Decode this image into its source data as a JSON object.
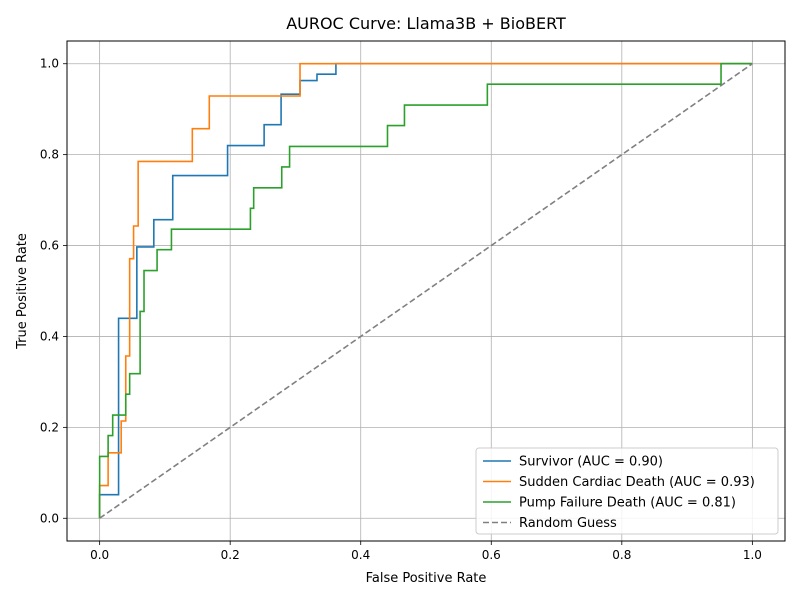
{
  "chart_data": {
    "type": "line",
    "title": "AUROC Curve: Llama3B + BioBERT",
    "xlabel": "False Positive Rate",
    "ylabel": "True Positive Rate",
    "xlim": [
      -0.05,
      1.05
    ],
    "ylim": [
      -0.05,
      1.05
    ],
    "xticks": [
      0.0,
      0.2,
      0.4,
      0.6,
      0.8,
      1.0
    ],
    "yticks": [
      0.0,
      0.2,
      0.4,
      0.6,
      0.8,
      1.0
    ],
    "xtick_labels": [
      "0.0",
      "0.2",
      "0.4",
      "0.6",
      "0.8",
      "1.0"
    ],
    "ytick_labels": [
      "0.0",
      "0.2",
      "0.4",
      "0.6",
      "0.8",
      "1.0"
    ],
    "grid": true,
    "legend_position": "lower-right",
    "series": [
      {
        "name": "Survivor (AUC = 0.90)",
        "color": "#1f77b4",
        "style": "solid",
        "points": [
          [
            0.0,
            0.0
          ],
          [
            0.0,
            0.052
          ],
          [
            0.029,
            0.052
          ],
          [
            0.029,
            0.44
          ],
          [
            0.057,
            0.44
          ],
          [
            0.057,
            0.597
          ],
          [
            0.083,
            0.597
          ],
          [
            0.083,
            0.657
          ],
          [
            0.112,
            0.657
          ],
          [
            0.112,
            0.754
          ],
          [
            0.196,
            0.754
          ],
          [
            0.196,
            0.82
          ],
          [
            0.252,
            0.82
          ],
          [
            0.252,
            0.866
          ],
          [
            0.278,
            0.866
          ],
          [
            0.278,
            0.933
          ],
          [
            0.307,
            0.933
          ],
          [
            0.307,
            0.963
          ],
          [
            0.333,
            0.963
          ],
          [
            0.333,
            0.977
          ],
          [
            0.362,
            0.977
          ],
          [
            0.362,
            1.0
          ],
          [
            1.0,
            1.0
          ]
        ]
      },
      {
        "name": "Sudden Cardiac Death (AUC = 0.93)",
        "color": "#ff7f0e",
        "style": "solid",
        "points": [
          [
            0.0,
            0.0
          ],
          [
            0.0,
            0.072
          ],
          [
            0.013,
            0.072
          ],
          [
            0.013,
            0.144
          ],
          [
            0.033,
            0.144
          ],
          [
            0.033,
            0.214
          ],
          [
            0.04,
            0.214
          ],
          [
            0.04,
            0.357
          ],
          [
            0.046,
            0.357
          ],
          [
            0.046,
            0.571
          ],
          [
            0.052,
            0.571
          ],
          [
            0.052,
            0.643
          ],
          [
            0.059,
            0.643
          ],
          [
            0.059,
            0.785
          ],
          [
            0.142,
            0.785
          ],
          [
            0.142,
            0.857
          ],
          [
            0.168,
            0.857
          ],
          [
            0.168,
            0.929
          ],
          [
            0.307,
            0.929
          ],
          [
            0.307,
            1.0
          ],
          [
            1.0,
            1.0
          ]
        ]
      },
      {
        "name": "Pump Failure Death (AUC = 0.81)",
        "color": "#2ca02c",
        "style": "solid",
        "points": [
          [
            0.0,
            0.0
          ],
          [
            0.0,
            0.136
          ],
          [
            0.013,
            0.136
          ],
          [
            0.013,
            0.182
          ],
          [
            0.02,
            0.182
          ],
          [
            0.02,
            0.227
          ],
          [
            0.04,
            0.227
          ],
          [
            0.04,
            0.273
          ],
          [
            0.046,
            0.273
          ],
          [
            0.046,
            0.318
          ],
          [
            0.062,
            0.318
          ],
          [
            0.062,
            0.455
          ],
          [
            0.068,
            0.455
          ],
          [
            0.068,
            0.545
          ],
          [
            0.088,
            0.545
          ],
          [
            0.088,
            0.591
          ],
          [
            0.11,
            0.591
          ],
          [
            0.11,
            0.636
          ],
          [
            0.231,
            0.636
          ],
          [
            0.231,
            0.682
          ],
          [
            0.236,
            0.682
          ],
          [
            0.236,
            0.727
          ],
          [
            0.279,
            0.727
          ],
          [
            0.279,
            0.773
          ],
          [
            0.291,
            0.773
          ],
          [
            0.291,
            0.818
          ],
          [
            0.441,
            0.818
          ],
          [
            0.441,
            0.864
          ],
          [
            0.467,
            0.864
          ],
          [
            0.467,
            0.909
          ],
          [
            0.594,
            0.909
          ],
          [
            0.594,
            0.955
          ],
          [
            0.952,
            0.955
          ],
          [
            0.952,
            1.0
          ],
          [
            1.0,
            1.0
          ]
        ]
      },
      {
        "name": "Random Guess",
        "color": "#808080",
        "style": "dashed",
        "points": [
          [
            0.0,
            0.0
          ],
          [
            1.0,
            1.0
          ]
        ]
      }
    ]
  }
}
